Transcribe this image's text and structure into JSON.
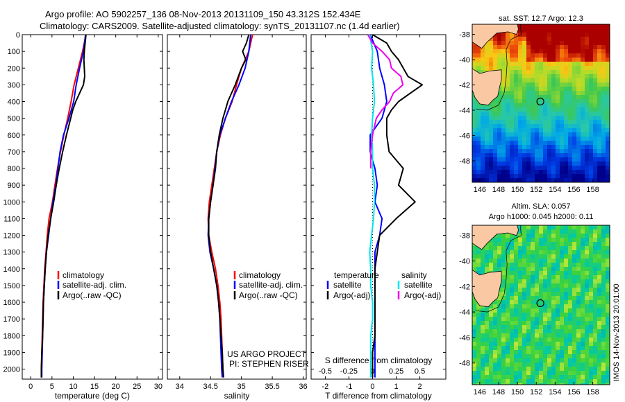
{
  "header": {
    "line1": "Argo profile: AO 5902257_136 08-Nov-2013 20131109_150 43.312S 152.434E",
    "line2": "Climatology: CARS2009. Satellite-adjusted climatology: synTS_20131107.nc (1.4d earlier)"
  },
  "side_stamp": "IMOS 14-Nov-2013 20:01:00",
  "credit": {
    "line1": "US ARGO PROJECT",
    "line2": "PI: STEPHEN RISER"
  },
  "colors": {
    "climatology": "#ff0000",
    "satellite": "#0000ff",
    "argo": "#000000",
    "sat_salinity": "#00e5ee",
    "argo_salinity": "#ee00ee",
    "land": "#fbc8a4"
  },
  "chart_data": [
    {
      "type": "line",
      "name": "temperature",
      "xlabel": "temperature (deg C)",
      "ylabel": "",
      "xlim": [
        -2,
        31
      ],
      "ylim": [
        2060,
        0
      ],
      "x_ticks": [
        "0",
        "5",
        "10",
        "15",
        "20",
        "25",
        "30"
      ],
      "y_ticks": [
        "0",
        "100",
        "200",
        "300",
        "400",
        "500",
        "600",
        "700",
        "800",
        "900",
        "1000",
        "1100",
        "1200",
        "1300",
        "1400",
        "1500",
        "1600",
        "1700",
        "1800",
        "1900",
        "2000"
      ],
      "legend": [
        "climatology",
        "satellite-adj. clim.",
        "Argo(..raw -QC)"
      ],
      "series": [
        {
          "name": "climatology",
          "y": [
            0,
            100,
            200,
            300,
            400,
            500,
            600,
            700,
            800,
            900,
            1000,
            1100,
            1200,
            1300,
            1400,
            1500,
            1600,
            1700,
            1800,
            1900,
            2000,
            2050
          ],
          "x": [
            13.0,
            12.2,
            11.2,
            10.2,
            9.5,
            8.7,
            7.8,
            7.0,
            6.3,
            5.7,
            5.1,
            4.3,
            3.9,
            3.6,
            3.3,
            3.1,
            2.9,
            2.8,
            2.7,
            2.6,
            2.5,
            2.5
          ]
        },
        {
          "name": "satellite-adj. clim.",
          "y": [
            0,
            100,
            200,
            300,
            400,
            500,
            600,
            700,
            800,
            900,
            1000,
            1100,
            1200,
            1300,
            1400,
            1500,
            1600,
            1700,
            1800,
            1900,
            2000,
            2050
          ],
          "x": [
            12.9,
            12.4,
            11.5,
            10.7,
            10.1,
            9.0,
            7.7,
            6.9,
            6.4,
            5.9,
            5.2,
            4.7,
            4.2,
            3.7,
            3.4,
            3.2,
            3.0,
            2.9,
            2.8,
            2.7,
            2.6,
            2.6
          ]
        },
        {
          "name": "Argo(..raw -QC)",
          "y": [
            0,
            50,
            100,
            150,
            200,
            250,
            300,
            350,
            400,
            450,
            500,
            600,
            700,
            800,
            900,
            1000,
            1100,
            1200,
            1300,
            1400,
            1500,
            1600,
            1700,
            1800,
            1900,
            2000,
            2050
          ],
          "x": [
            13.0,
            12.8,
            12.6,
            12.5,
            12.6,
            12.7,
            12.4,
            11.5,
            10.6,
            9.9,
            9.4,
            8.4,
            7.5,
            6.7,
            6.0,
            5.4,
            4.7,
            4.1,
            3.7,
            3.4,
            3.2,
            3.0,
            2.9,
            2.8,
            2.6,
            2.5,
            2.5
          ]
        }
      ]
    },
    {
      "type": "line",
      "name": "salinity",
      "xlabel": "salinity",
      "ylabel": "",
      "xlim": [
        33.8,
        36.05
      ],
      "ylim": [
        2060,
        0
      ],
      "x_ticks": [
        "34",
        "34.5",
        "35",
        "35.5",
        "36"
      ],
      "legend": [
        "climatology",
        "satellite-adj. clim.",
        "Argo(..raw -QC)"
      ],
      "series": [
        {
          "name": "climatology",
          "y": [
            0,
            100,
            200,
            300,
            400,
            500,
            600,
            700,
            800,
            900,
            1000,
            1100,
            1200,
            1300,
            1400,
            1500,
            1600,
            1700,
            1800,
            1900,
            2000,
            2050
          ],
          "x": [
            35.18,
            35.12,
            35.0,
            34.92,
            34.85,
            34.74,
            34.66,
            34.6,
            34.56,
            34.52,
            34.48,
            34.46,
            34.47,
            34.52,
            34.58,
            34.62,
            34.65,
            34.67,
            34.68,
            34.69,
            34.7,
            34.71
          ]
        },
        {
          "name": "satellite-adj. clim.",
          "y": [
            0,
            100,
            200,
            300,
            400,
            500,
            600,
            700,
            800,
            900,
            1000,
            1100,
            1200,
            1300,
            1400,
            1500,
            1600,
            1700,
            1800,
            1900,
            2000,
            2050
          ],
          "x": [
            35.15,
            35.12,
            35.06,
            34.96,
            34.84,
            34.74,
            34.65,
            34.6,
            34.57,
            34.54,
            34.5,
            34.47,
            34.46,
            34.49,
            34.55,
            34.6,
            34.63,
            34.65,
            34.66,
            34.67,
            34.68,
            34.69
          ]
        },
        {
          "name": "Argo(..raw -QC)",
          "y": [
            0,
            50,
            100,
            150,
            200,
            250,
            300,
            350,
            400,
            450,
            500,
            600,
            700,
            800,
            900,
            1000,
            1100,
            1200,
            1300,
            1400,
            1500,
            1600,
            1700,
            1800,
            1900,
            2000,
            2050
          ],
          "x": [
            35.12,
            35.08,
            35.02,
            35.07,
            35.0,
            34.95,
            34.9,
            34.84,
            34.78,
            34.74,
            34.7,
            34.64,
            34.6,
            34.58,
            34.54,
            34.5,
            34.47,
            34.47,
            34.5,
            34.55,
            34.6,
            34.63,
            34.65,
            34.67,
            34.69,
            34.7,
            34.71
          ]
        }
      ]
    },
    {
      "type": "line",
      "name": "differences from climatology",
      "xlabel": "T difference from climatology",
      "x2label": "S difference from climatology",
      "xlim": [
        -2.6,
        3.1
      ],
      "x2lim": [
        -0.65,
        0.775
      ],
      "ylim": [
        2060,
        0
      ],
      "x_ticks": [
        "-2",
        "-1",
        "0",
        "1",
        "2"
      ],
      "x2_ticks": [
        "-0.5",
        "-0.25",
        "0",
        "0.25",
        "0.5"
      ],
      "legend": {
        "temperature": "temperature",
        "salinity": "salinity",
        "t_sat": "satellite",
        "t_argo": "Argo(-adj)",
        "s_sat": "satellite",
        "s_argo": "Argo(-adj)"
      },
      "series": [
        {
          "name": "T satellite",
          "axis": "x",
          "y": [
            0,
            100,
            200,
            300,
            400,
            500,
            600,
            700,
            800,
            900,
            1000,
            1100,
            1200,
            1300,
            1400,
            1500,
            1600,
            1700,
            1800,
            1900,
            2000,
            2050
          ],
          "x": [
            -0.1,
            0.2,
            0.3,
            0.5,
            0.6,
            0.4,
            -0.1,
            -0.1,
            0.1,
            0.2,
            0.1,
            0.4,
            0.3,
            0.1,
            0.1,
            0.1,
            0.1,
            0.1,
            0.1,
            0.1,
            0.1,
            0.1
          ]
        },
        {
          "name": "T Argo(-adj)",
          "axis": "x",
          "y": [
            0,
            50,
            100,
            150,
            200,
            250,
            300,
            350,
            400,
            450,
            500,
            600,
            700,
            800,
            900,
            1000,
            1100,
            1200,
            1300,
            1400,
            1500,
            1600,
            1700,
            1800,
            1900,
            2000,
            2050
          ],
          "x": [
            0.0,
            0.6,
            0.8,
            1.1,
            1.3,
            1.5,
            2.1,
            1.6,
            1.1,
            0.8,
            0.6,
            0.6,
            0.7,
            1.3,
            1.1,
            1.8,
            1.0,
            0.3,
            0.2,
            0.1,
            0.1,
            0.1,
            0.1,
            0.1,
            0.0,
            0.0,
            0.0
          ]
        },
        {
          "name": "S satellite",
          "axis": "x2",
          "y": [
            0,
            100,
            200,
            300,
            400,
            500,
            600,
            700,
            800,
            900,
            1000,
            1100,
            1200,
            1300,
            1400,
            1500,
            1600,
            1700,
            1800,
            1900,
            2000,
            2050
          ],
          "x": [
            -0.03,
            0.0,
            -0.01,
            0.01,
            0.02,
            0.0,
            -0.01,
            0.0,
            0.0,
            0.02,
            0.02,
            0.01,
            -0.01,
            -0.03,
            -0.02,
            -0.02,
            0.0,
            0.0,
            -0.02,
            -0.02,
            -0.02,
            -0.02
          ]
        },
        {
          "name": "S Argo(-adj)",
          "axis": "x2",
          "y": [
            0,
            50,
            100,
            150,
            200,
            250,
            300,
            350,
            400,
            450,
            500,
            600,
            700,
            800
          ],
          "x": [
            -0.05,
            0.0,
            0.1,
            0.18,
            0.2,
            0.3,
            0.32,
            0.22,
            0.18,
            0.1,
            0.04,
            0.0,
            -0.02,
            -0.02
          ]
        }
      ]
    }
  ],
  "maps": [
    {
      "name": "sst-map",
      "title": "sat. SST: 12.7 Argo: 12.3",
      "title2": "",
      "lon_ticks": [
        "146",
        "148",
        "150",
        "152",
        "154",
        "156",
        "158"
      ],
      "lat_ticks": [
        "-38",
        "-40",
        "-42",
        "-44",
        "-46",
        "-48"
      ],
      "marker": [
        152.434,
        -43.312
      ]
    },
    {
      "name": "sla-map",
      "title": "Altim. SLA: 0.057",
      "title2": "Argo h1000: 0.045 h2000: 0.11",
      "lon_ticks": [
        "146",
        "148",
        "150",
        "152",
        "154",
        "156",
        "158"
      ],
      "lat_ticks": [
        "-38",
        "-40",
        "-42",
        "-44",
        "-46",
        "-48"
      ],
      "marker": [
        152.434,
        -43.312
      ]
    }
  ]
}
